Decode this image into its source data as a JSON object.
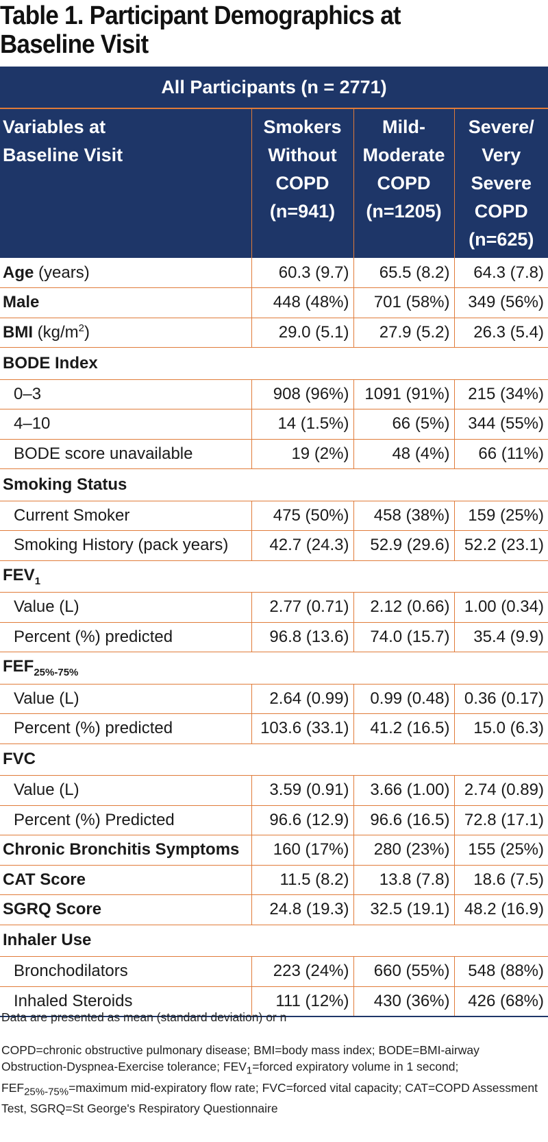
{
  "title": {
    "line1": "Table 1. Participant Demographics at",
    "line2": "Baseline Visit"
  },
  "banner": "All Participants (n = 2771)",
  "headers": {
    "variables": [
      "Variables at",
      "Baseline Visit"
    ],
    "col1": [
      "Smokers",
      "Without",
      "COPD",
      "(n=941)"
    ],
    "col2": [
      "Mild-",
      "Moderate",
      "COPD",
      "(n=1205)"
    ],
    "col3": [
      "Severe/",
      "Very",
      "Severe",
      "COPD",
      "(n=625)"
    ]
  },
  "rows": {
    "age": {
      "label": "Age",
      "unit": " (years)",
      "v": [
        "60.3 (9.7)",
        "65.5 (8.2)",
        "64.3 (7.8)"
      ]
    },
    "male": {
      "label": "Male",
      "v": [
        "448 (48%)",
        "701 (58%)",
        "349 (56%)"
      ]
    },
    "bmi": {
      "label": "BMI",
      "unit": " (kg/m",
      "sup": "2",
      "unit_end": ")",
      "v": [
        "29.0 (5.1)",
        "27.9 (5.2)",
        "26.3 (5.4)"
      ]
    },
    "bode": {
      "label": "BODE Index"
    },
    "bode_0_3": {
      "label": "0–3",
      "v": [
        "908 (96%)",
        "1091 (91%)",
        "215 (34%)"
      ]
    },
    "bode_4_10": {
      "label": "4–10",
      "v": [
        "14 (1.5%)",
        "66 (5%)",
        "344 (55%)"
      ]
    },
    "bode_na": {
      "label": "BODE score unavailable",
      "v": [
        "19 (2%)",
        "48 (4%)",
        "66 (11%)"
      ]
    },
    "smoking": {
      "label": "Smoking Status"
    },
    "current": {
      "label": "Current Smoker",
      "v": [
        "475 (50%)",
        "458 (38%)",
        "159 (25%)"
      ]
    },
    "history": {
      "label": "Smoking History (pack years)",
      "v": [
        "42.7 (24.3)",
        "52.9 (29.6)",
        "52.2 (23.1)"
      ]
    },
    "fev1": {
      "label": "FEV",
      "sub": "1"
    },
    "fev1_value": {
      "label": "Value (L)",
      "v": [
        "2.77 (0.71)",
        "2.12 (0.66)",
        "1.00 (0.34)"
      ]
    },
    "fev1_pct": {
      "label": "Percent (%) predicted",
      "v": [
        "96.8 (13.6)",
        "74.0 (15.7)",
        "35.4 (9.9)"
      ]
    },
    "fef": {
      "label": "FEF",
      "sub": "25%-75%"
    },
    "fef_value": {
      "label": "Value (L)",
      "v": [
        "2.64 (0.99)",
        "0.99 (0.48)",
        "0.36 (0.17)"
      ]
    },
    "fef_pct": {
      "label": "Percent (%) predicted",
      "v": [
        "103.6 (33.1)",
        "41.2 (16.5)",
        "15.0 (6.3)"
      ]
    },
    "fvc": {
      "label": "FVC"
    },
    "fvc_value": {
      "label": "Value (L)",
      "v": [
        "3.59 (0.91)",
        "3.66 (1.00)",
        "2.74 (0.89)"
      ]
    },
    "fvc_pct": {
      "label": "Percent (%) Predicted",
      "v": [
        "96.6 (12.9)",
        "96.6 (16.5)",
        "72.8 (17.1)"
      ]
    },
    "bronchitis": {
      "label": "Chronic Bronchitis Symptoms",
      "v": [
        "160 (17%)",
        "280 (23%)",
        "155 (25%)"
      ]
    },
    "cat": {
      "label": "CAT Score",
      "v": [
        "11.5 (8.2)",
        "13.8 (7.8)",
        "18.6 (7.5)"
      ]
    },
    "sgrq": {
      "label": "SGRQ Score",
      "v": [
        "24.8 (19.3)",
        "32.5 (19.1)",
        "48.2 (16.9)"
      ]
    },
    "inhaler": {
      "label": "Inhaler Use"
    },
    "broncho": {
      "label": "Bronchodilators",
      "v": [
        "223 (24%)",
        "660 (55%)",
        "548 (88%)"
      ]
    },
    "steroids": {
      "label": "Inhaled Steroids",
      "v": [
        "111 (12%)",
        "430 (36%)",
        "426 (68%)"
      ]
    }
  },
  "notes": {
    "data_note": "Data are presented as mean (standard deviation) or n",
    "abbr_a": "COPD=chronic obstructive pulmonary disease; BMI=body mass index; BODE=BMI-airway Obstruction-Dyspnea-Exercise tolerance; FEV",
    "abbr_fev_sub": "1",
    "abbr_b": "=forced expiratory volume in 1 second; FEF",
    "abbr_fef_sub": "25%-75%",
    "abbr_c": "=maximum mid-expiratory flow rate; FVC=forced vital capacity; CAT=COPD Assessment Test, SGRQ=St George's Respiratory Questionnaire"
  }
}
